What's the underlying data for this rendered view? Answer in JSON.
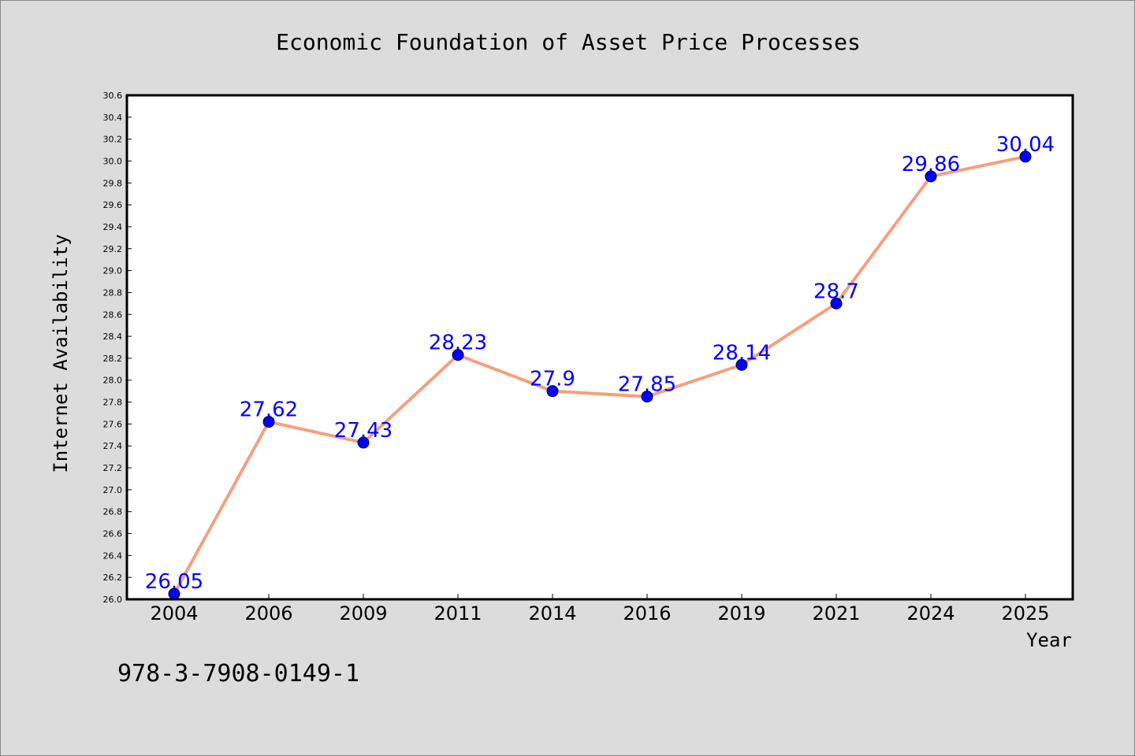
{
  "colors": {
    "background": "#dcdcdc",
    "plot_background": "#ffffff",
    "line": "#f4a07f",
    "marker": "#0000ff",
    "data_label": "#0000ff",
    "axes": "#000000"
  },
  "chart_data": {
    "type": "line",
    "title": "Economic Foundation of Asset Price Processes",
    "xlabel": "Year",
    "ylabel": "Internet Availability",
    "categories": [
      "2004",
      "2006",
      "2009",
      "2011",
      "2014",
      "2016",
      "2019",
      "2021",
      "2024",
      "2025"
    ],
    "series": [
      {
        "values": [
          26.05,
          27.62,
          27.43,
          28.23,
          27.9,
          27.85,
          28.14,
          28.7,
          29.86,
          30.04
        ],
        "labels": [
          "26.05",
          "27.62",
          "27.43",
          "28.23",
          "27.9",
          "27.85",
          "28.14",
          "28.7",
          "29.86",
          "30.04"
        ]
      }
    ],
    "ylim": [
      26.0,
      30.6
    ],
    "yticks": [
      "26.0",
      "26.2",
      "26.4",
      "26.6",
      "26.8",
      "27.0",
      "27.2",
      "27.4",
      "27.6",
      "27.8",
      "28.0",
      "28.2",
      "28.4",
      "28.6",
      "28.8",
      "29.0",
      "29.2",
      "29.4",
      "29.6",
      "29.8",
      "30.0",
      "30.2",
      "30.4",
      "30.6"
    ],
    "grid": false,
    "legend": "none"
  },
  "annotation": {
    "isbn": "978-3-7908-0149-1"
  }
}
